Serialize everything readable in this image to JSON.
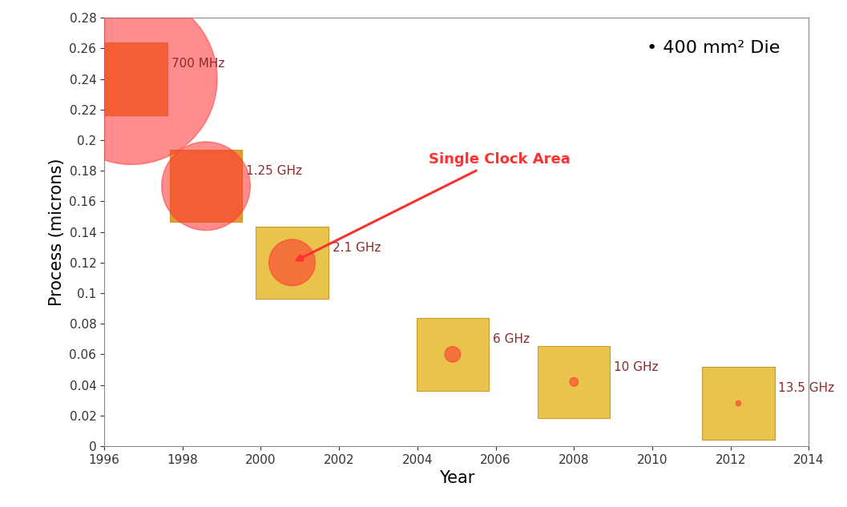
{
  "chart_data": {
    "type": "scatter",
    "xlabel": "Year",
    "ylabel": "Process (microns)",
    "note": "• 400 mm² Die",
    "x": [
      1996.7,
      1998.6,
      2000.8,
      2004.9,
      2008.0,
      2012.2
    ],
    "values": [
      0.24,
      0.17,
      0.12,
      0.06,
      0.042,
      0.028
    ],
    "point_labels": [
      "700 MHz",
      "1.25 GHz",
      "2.1 GHz",
      "6 GHz",
      "10 GHz",
      "13.5 GHz"
    ],
    "sizes": [
      5.6,
      1.5,
      0.41,
      0.047,
      0.014,
      0.005
    ],
    "color": "#ff3030",
    "annotation": {
      "text": "Single Clock Area",
      "points_to": "2.1 GHz"
    },
    "xlim": [
      1996,
      2014
    ],
    "xticks": [
      1996,
      1998,
      2000,
      2002,
      2004,
      2006,
      2008,
      2010,
      2012,
      2014
    ],
    "ylim": [
      0,
      0.28
    ],
    "yticks": [
      0,
      0.02,
      0.04,
      0.06,
      0.08,
      0.1,
      0.12,
      0.14,
      0.16,
      0.18,
      0.2,
      0.22,
      0.24,
      0.26,
      0.28
    ],
    "grid": false
  }
}
